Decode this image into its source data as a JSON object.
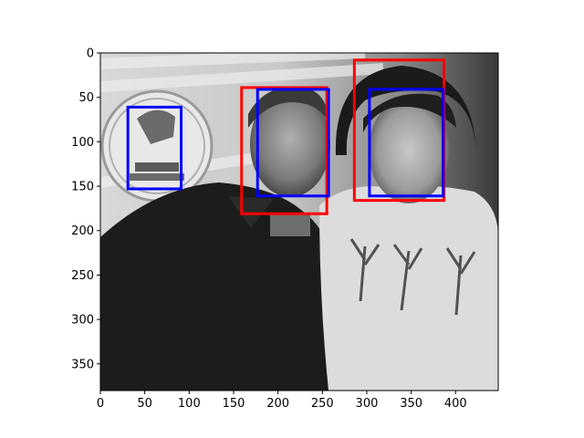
{
  "chart_data": {
    "type": "image-with-boxes",
    "image_width": 448,
    "image_height": 380,
    "xlim": [
      0,
      448
    ],
    "ylim": [
      380,
      0
    ],
    "x_ticks": [
      0,
      50,
      100,
      150,
      200,
      250,
      300,
      350,
      400
    ],
    "y_ticks": [
      0,
      50,
      100,
      150,
      200,
      250,
      300,
      350
    ],
    "grid": false,
    "colors": {
      "red_box": "#ff0000",
      "blue_box": "#0000ff"
    },
    "boxes": [
      {
        "color": "red",
        "x0": 159,
        "y0": 39,
        "x1": 255,
        "y1": 181
      },
      {
        "color": "red",
        "x0": 286,
        "y0": 8,
        "x1": 387,
        "y1": 166
      },
      {
        "color": "blue",
        "x0": 31,
        "y0": 61,
        "x1": 91,
        "y1": 153
      },
      {
        "color": "blue",
        "x0": 177,
        "y0": 41,
        "x1": 257,
        "y1": 161
      },
      {
        "color": "blue",
        "x0": 303,
        "y0": 41,
        "x1": 386,
        "y1": 161
      }
    ]
  }
}
